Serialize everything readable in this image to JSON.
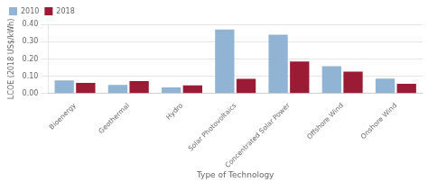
{
  "chart_data": {
    "type": "bar",
    "categories": [
      "Bioenergy",
      "Geothermal",
      "Hydro",
      "Solar Photovoltaics",
      "Concentrated Solar Power",
      "Offshore Wind",
      "Onshore Wind"
    ],
    "series": [
      {
        "name": "2010",
        "color": "#92B4D4",
        "values": [
          0.076,
          0.05,
          0.035,
          0.37,
          0.34,
          0.158,
          0.086
        ]
      },
      {
        "name": "2018",
        "color": "#9B1B34",
        "values": [
          0.062,
          0.072,
          0.047,
          0.085,
          0.185,
          0.127,
          0.056
        ]
      }
    ],
    "xlabel": "Type of Technology",
    "ylabel": "LCOE (2018 US$/kWh)",
    "ylim": [
      0,
      0.4
    ],
    "yticks": [
      {
        "value": 0,
        "label": "0.00"
      },
      {
        "value": 0.1,
        "label": "0.10"
      },
      {
        "value": 0.2,
        "label": "0.20"
      },
      {
        "value": 0.3,
        "label": "0.30"
      },
      {
        "value": 0.4,
        "label": "0.40"
      }
    ],
    "grid": true,
    "legend": "upper left"
  }
}
